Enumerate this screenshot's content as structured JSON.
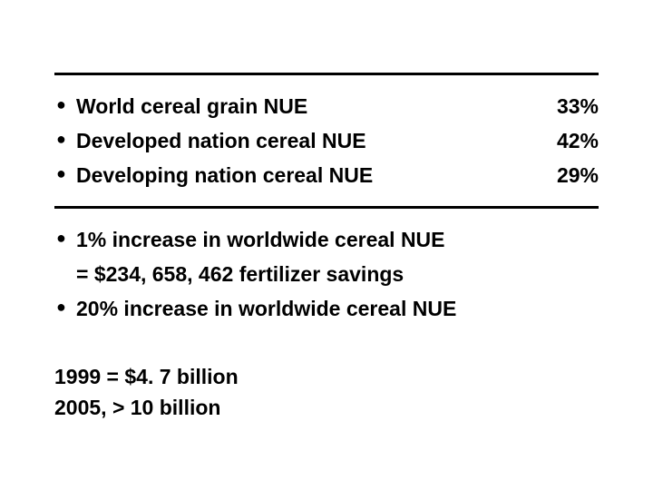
{
  "section1": {
    "items": [
      {
        "label": "World cereal grain NUE",
        "value": "33%"
      },
      {
        "label": "Developed nation cereal NUE",
        "value": "42%"
      },
      {
        "label": "Developing nation cereal NUE",
        "value": "29%"
      }
    ]
  },
  "section2": {
    "items": [
      {
        "label": "1% increase in worldwide cereal NUE",
        "sub": "= $234, 658, 462 fertilizer savings"
      },
      {
        "label": "20% increase in worldwide cereal NUE"
      }
    ]
  },
  "footer": {
    "lines": [
      "1999  = $4. 7 billion",
      "2005, > 10 billion"
    ]
  },
  "colors": {
    "text": "#000000",
    "rule": "#000000",
    "background": "#ffffff"
  },
  "typography": {
    "font_family": "Arial",
    "font_size_pt": 17,
    "font_weight": "bold"
  }
}
